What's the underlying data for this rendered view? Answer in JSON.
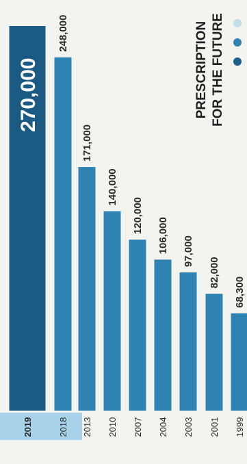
{
  "chart_data": {
    "type": "bar",
    "orientation": "horizontal-bars-rotated",
    "title": "PRESCRIPTION FOR THE FUTURE",
    "categories": [
      "2019",
      "2018",
      "2013",
      "2010",
      "2007",
      "2004",
      "2003",
      "2001",
      "1999"
    ],
    "values": [
      270000,
      248000,
      171000,
      140000,
      120000,
      106000,
      97000,
      82000,
      68300
    ],
    "value_labels": [
      "270,000",
      "248,000",
      "171,000",
      "140,000",
      "120,000",
      "106,000",
      "97,000",
      "82,000",
      "68,300"
    ],
    "highlight_category": "2019",
    "ylim": [
      0,
      270000
    ],
    "grid": false,
    "legend": "none",
    "colors": {
      "bar": "#2f83b2",
      "highlight_bar": "#1b5a82",
      "highlight_label": "#ffffff",
      "highlight_band": "#a8d2ea",
      "text": "#2a2a2a",
      "title": "#202020",
      "dots": [
        "#1d5f8a",
        "#2f83b2",
        "#c2dce8"
      ]
    }
  }
}
